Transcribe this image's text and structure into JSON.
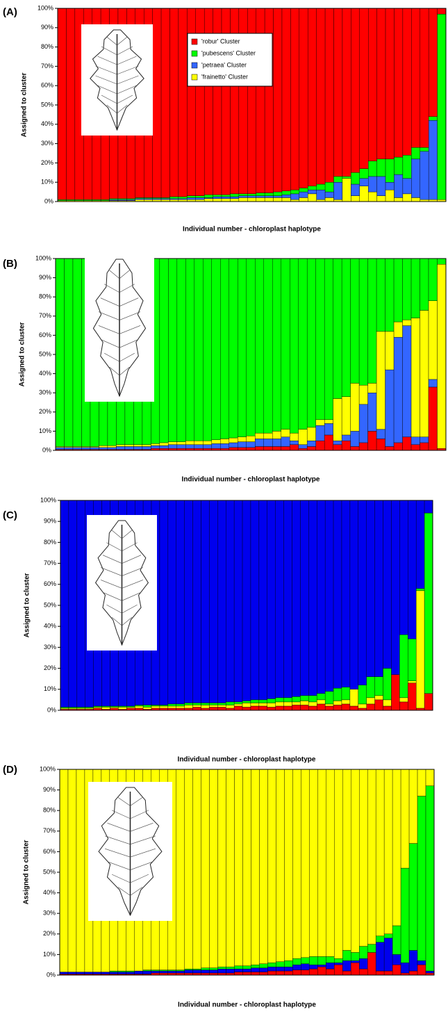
{
  "chart_data": [
    {
      "type": "bar",
      "stacked": true,
      "panel_label": "(A)",
      "y_label": "Assigned to cluster",
      "x_label": "Individual number - chloroplast haplotype",
      "legend": true,
      "categories": [
        null,
        null,
        null,
        null,
        null,
        null,
        null,
        null,
        null,
        null,
        null,
        null,
        null,
        null,
        null,
        null,
        null,
        null,
        null,
        null,
        null,
        null,
        null,
        null,
        null,
        null,
        null,
        null,
        null,
        null,
        null,
        null,
        null,
        null,
        null,
        null,
        null,
        null,
        null,
        null,
        null,
        null,
        null,
        null,
        null
      ],
      "ylim": [
        0,
        100
      ],
      "yticks": [
        {
          "value": 0,
          "label": "0%"
        },
        {
          "value": 10,
          "label": "10%"
        },
        {
          "value": 20,
          "label": "20%"
        },
        {
          "value": 30,
          "label": "30%"
        },
        {
          "value": 40,
          "label": "40%"
        },
        {
          "value": 50,
          "label": "50%"
        },
        {
          "value": 60,
          "label": "60%"
        },
        {
          "value": 70,
          "label": "70%"
        },
        {
          "value": 80,
          "label": "80%"
        },
        {
          "value": 90,
          "label": "90%"
        },
        {
          "value": 100,
          "label": "100%"
        }
      ],
      "series": [
        {
          "name": "'robur' Cluster",
          "color": "#ff0000",
          "values": [
            99,
            99,
            99,
            99,
            99,
            99,
            98.5,
            98.5,
            98.5,
            98,
            98,
            98,
            98,
            97.5,
            97.5,
            97,
            97,
            96.5,
            96.5,
            96.5,
            96,
            96,
            96,
            95.5,
            95.5,
            95,
            94.5,
            94,
            93,
            92,
            91,
            90,
            87,
            87,
            85,
            83,
            79,
            78,
            78,
            77,
            76,
            72,
            72,
            56,
            3
          ]
        },
        {
          "name": "'pubescens' Cluster",
          "color": "#00ff00",
          "values": [
            0.5,
            0.5,
            0.5,
            0.5,
            0.5,
            0.5,
            0.5,
            0.5,
            0.5,
            0.5,
            0.5,
            0.5,
            0.5,
            1,
            1,
            1,
            1,
            1.5,
            1,
            1,
            1.5,
            1,
            1,
            1.5,
            1.5,
            2,
            2,
            2,
            2,
            2,
            3,
            5,
            3,
            1,
            6,
            5,
            8,
            9,
            12,
            9,
            12,
            6,
            2,
            2,
            96
          ]
        },
        {
          "name": "'petraea' Cluster",
          "color": "#3366ff",
          "values": [
            0,
            0,
            0,
            0,
            0,
            0,
            0.5,
            0.5,
            0.5,
            0.5,
            0.5,
            0.5,
            0.5,
            0.5,
            0.5,
            1,
            1,
            0.5,
            1,
            1,
            1,
            1,
            1,
            1,
            1,
            1,
            1.5,
            3,
            3,
            2,
            5,
            3,
            9,
            0,
            6,
            4,
            8,
            10,
            4,
            12,
            8,
            20,
            25,
            41,
            0
          ]
        },
        {
          "name": "'frainetto' Cluster",
          "color": "#ffff00",
          "values": [
            0.5,
            0.5,
            0.5,
            0.5,
            0.5,
            0.5,
            0.5,
            0.5,
            0.5,
            1,
            1,
            1,
            1,
            1,
            1,
            1,
            1,
            1.5,
            1.5,
            1.5,
            1.5,
            2,
            2,
            2,
            2,
            2,
            2,
            1,
            2,
            4,
            1,
            2,
            1,
            12,
            3,
            8,
            5,
            3,
            6,
            2,
            4,
            2,
            1,
            1,
            1
          ]
        }
      ]
    },
    {
      "type": "bar",
      "stacked": true,
      "panel_label": "(B)",
      "y_label": "Assigned to cluster",
      "x_label": "Individual number - chloroplast haplotype",
      "categories": [
        null,
        null,
        null,
        null,
        null,
        null,
        null,
        null,
        null,
        null,
        null,
        null,
        null,
        null,
        null,
        null,
        null,
        null,
        null,
        null,
        null,
        null,
        null,
        null,
        null,
        null,
        null,
        null,
        null,
        null,
        null,
        null,
        null,
        null,
        null,
        null,
        null,
        null,
        null,
        null,
        null,
        null,
        null,
        null,
        null
      ],
      "ylim": [
        0,
        100
      ],
      "yticks": [
        {
          "value": 0,
          "label": "0%"
        },
        {
          "value": 10,
          "label": "10%"
        },
        {
          "value": 20,
          "label": "20%"
        },
        {
          "value": 30,
          "label": "30%"
        },
        {
          "value": 40,
          "label": "40%"
        },
        {
          "value": 50,
          "label": "50%"
        },
        {
          "value": 60,
          "label": "60%"
        },
        {
          "value": 70,
          "label": "70%"
        },
        {
          "value": 80,
          "label": "80%"
        },
        {
          "value": 90,
          "label": "90%"
        },
        {
          "value": 100,
          "label": "100%"
        }
      ],
      "series": [
        {
          "color": "#00ff00",
          "values": [
            98,
            98,
            98,
            98,
            98,
            97.5,
            97.5,
            97,
            97,
            97,
            97,
            96.5,
            96,
            95.5,
            95.5,
            95,
            95,
            95,
            94.5,
            94,
            93.5,
            93,
            92.5,
            91,
            91,
            90,
            89,
            91,
            89,
            88,
            84,
            84,
            73,
            72,
            65,
            66,
            65,
            38,
            38,
            33,
            32,
            31,
            27,
            22,
            3
          ]
        },
        {
          "color": "#ffff00",
          "values": [
            0.5,
            0.5,
            0.5,
            0.5,
            0.5,
            1,
            1,
            1,
            1,
            1,
            1,
            1,
            1.5,
            1.5,
            1.5,
            2,
            2,
            2,
            2,
            2.5,
            2.5,
            2.5,
            3,
            3,
            3,
            4,
            4,
            4,
            8,
            7,
            3,
            2,
            22,
            20,
            25,
            10,
            5,
            51,
            20,
            8,
            3,
            62,
            66,
            41,
            96
          ]
        },
        {
          "color": "#3366ff",
          "values": [
            1,
            1,
            1,
            1,
            1,
            1,
            1,
            1.5,
            1.5,
            1.5,
            1.5,
            1.5,
            1.5,
            2,
            2,
            2,
            2,
            2,
            2.5,
            2.5,
            2.5,
            3,
            3,
            4,
            4,
            4,
            5,
            2,
            2,
            3,
            8,
            6,
            2,
            3,
            8,
            20,
            20,
            5,
            40,
            55,
            58,
            4,
            3,
            4,
            0
          ]
        },
        {
          "color": "#ff0000",
          "values": [
            0.5,
            0.5,
            0.5,
            0.5,
            0.5,
            0.5,
            0.5,
            0.5,
            0.5,
            0.5,
            0.5,
            1,
            1,
            1,
            1,
            1,
            1,
            1,
            1,
            1,
            1.5,
            1.5,
            1.5,
            2,
            2,
            2,
            2,
            3,
            1,
            2,
            5,
            8,
            3,
            5,
            2,
            4,
            10,
            6,
            2,
            4,
            7,
            3,
            4,
            33,
            1
          ]
        }
      ]
    },
    {
      "type": "bar",
      "stacked": true,
      "panel_label": "(C)",
      "y_label": "Assigned to cluster",
      "x_label": "Individual number - chloroplast haplotype",
      "categories": [
        null,
        null,
        null,
        null,
        null,
        null,
        null,
        null,
        null,
        null,
        null,
        null,
        null,
        null,
        null,
        null,
        null,
        null,
        null,
        null,
        null,
        null,
        null,
        null,
        null,
        null,
        null,
        null,
        null,
        null,
        null,
        null,
        null,
        null,
        null,
        null,
        null,
        null,
        null,
        null,
        null,
        null,
        null,
        null,
        null
      ],
      "ylim": [
        0,
        100
      ],
      "yticks": [
        {
          "value": 0,
          "label": "0%"
        },
        {
          "value": 10,
          "label": "10%"
        },
        {
          "value": 20,
          "label": "20%"
        },
        {
          "value": 30,
          "label": "30%"
        },
        {
          "value": 40,
          "label": "40%"
        },
        {
          "value": 50,
          "label": "50%"
        },
        {
          "value": 60,
          "label": "60%"
        },
        {
          "value": 70,
          "label": "70%"
        },
        {
          "value": 80,
          "label": "80%"
        },
        {
          "value": 90,
          "label": "90%"
        },
        {
          "value": 100,
          "label": "100%"
        }
      ],
      "series": [
        {
          "color": "#0000ee",
          "values": [
            98.5,
            98.5,
            98.5,
            98.5,
            98,
            98,
            98,
            98,
            98,
            97.5,
            97.5,
            97.5,
            97.5,
            97,
            97,
            96.5,
            96.5,
            96.5,
            96.5,
            96.5,
            96,
            96,
            95.5,
            95,
            95,
            94.5,
            94,
            94,
            93.5,
            93,
            93,
            92,
            91,
            89.5,
            89,
            90,
            88,
            84,
            84,
            80,
            83,
            64,
            66,
            42,
            6
          ]
        },
        {
          "color": "#00ff00",
          "values": [
            0.5,
            0.5,
            0.5,
            0.5,
            0.5,
            0.5,
            0.5,
            0.5,
            0.5,
            0.5,
            1,
            0.5,
            0.5,
            1,
            1,
            1,
            1,
            1,
            1,
            1,
            1.5,
            1,
            1,
            1.5,
            1.5,
            2,
            2,
            2,
            2.5,
            2.5,
            3,
            3,
            6,
            6,
            6,
            0,
            9,
            10,
            9,
            15,
            0,
            30,
            20,
            1,
            86
          ]
        },
        {
          "color": "#ffff00",
          "values": [
            0.5,
            0.5,
            0.5,
            0.5,
            0.5,
            1,
            0.5,
            1,
            0.5,
            1,
            1,
            1,
            1,
            1,
            1,
            1.5,
            1,
            1.5,
            1,
            1,
            1.5,
            1,
            2,
            1.5,
            1.5,
            2,
            2,
            2,
            1.5,
            2,
            2,
            2,
            1,
            2,
            2,
            8,
            2,
            3,
            2,
            3,
            0,
            2,
            1,
            56,
            0
          ]
        },
        {
          "color": "#ff0000",
          "values": [
            0.5,
            0.5,
            0.5,
            0.5,
            1,
            0.5,
            1,
            0.5,
            1,
            1,
            0.5,
            1,
            1,
            1,
            1,
            1,
            1.5,
            1,
            1.5,
            1.5,
            1,
            2,
            1.5,
            2,
            2,
            1.5,
            2,
            2,
            2.5,
            2.5,
            2,
            3,
            2,
            2.5,
            3,
            2,
            1,
            3,
            5,
            2,
            17,
            4,
            13,
            1,
            8
          ]
        }
      ]
    },
    {
      "type": "bar",
      "stacked": true,
      "panel_label": "(D)",
      "y_label": "Assigned to cluster",
      "x_label": "Individual number - chloroplast haplotype",
      "categories": [
        null,
        null,
        null,
        null,
        null,
        null,
        null,
        null,
        null,
        null,
        null,
        null,
        null,
        null,
        null,
        null,
        null,
        null,
        null,
        null,
        null,
        null,
        null,
        null,
        null,
        null,
        null,
        null,
        null,
        null,
        null,
        null,
        null,
        null,
        null,
        null,
        null,
        null,
        null,
        null,
        null,
        null,
        null,
        null,
        null
      ],
      "ylim": [
        0,
        100
      ],
      "yticks": [
        {
          "value": 0,
          "label": "0%"
        },
        {
          "value": 10,
          "label": "10%"
        },
        {
          "value": 20,
          "label": "20%"
        },
        {
          "value": 30,
          "label": "30%"
        },
        {
          "value": 40,
          "label": "40%"
        },
        {
          "value": 50,
          "label": "50%"
        },
        {
          "value": 60,
          "label": "60%"
        },
        {
          "value": 70,
          "label": "70%"
        },
        {
          "value": 80,
          "label": "80%"
        },
        {
          "value": 90,
          "label": "90%"
        },
        {
          "value": 100,
          "label": "100%"
        }
      ],
      "series": [
        {
          "color": "#ffff00",
          "values": [
            98.5,
            98.5,
            98.5,
            98.5,
            98.5,
            98.5,
            98,
            98,
            98,
            98,
            97.5,
            97.5,
            97.5,
            97.5,
            97.5,
            97,
            97,
            96.5,
            96.5,
            96,
            96,
            95.5,
            95.5,
            95,
            94.5,
            94,
            93.5,
            93,
            92,
            91.5,
            91,
            91,
            91,
            92,
            88,
            89,
            86,
            85,
            81,
            80,
            76,
            48,
            36,
            13,
            8
          ]
        },
        {
          "color": "#00ff00",
          "values": [
            0,
            0,
            0,
            0,
            0,
            0,
            0.5,
            0.5,
            0.5,
            0,
            0.5,
            0.5,
            0.5,
            0.5,
            0.5,
            0.5,
            0.5,
            1,
            1,
            1,
            1,
            1.5,
            1.5,
            1.5,
            2,
            2,
            2.5,
            3,
            3,
            3,
            4,
            4,
            3,
            2,
            5,
            4,
            6,
            4,
            3,
            2,
            14,
            46,
            52,
            80,
            90
          ]
        },
        {
          "color": "#0000ee",
          "values": [
            1,
            1,
            1,
            1,
            1,
            1,
            1,
            1,
            1,
            1.5,
            1.5,
            1,
            1,
            1,
            1,
            1.5,
            1.5,
            1.5,
            1.5,
            2,
            2,
            1.5,
            1.5,
            2,
            2,
            2,
            2,
            2,
            2.5,
            3,
            2,
            1,
            3,
            1,
            5,
            1,
            5,
            0,
            14,
            16,
            5,
            5,
            10,
            2,
            1
          ]
        },
        {
          "color": "#ff0000",
          "values": [
            0.5,
            0.5,
            0.5,
            0.5,
            0.5,
            0.5,
            0.5,
            0.5,
            0.5,
            0.5,
            0.5,
            1,
            1,
            1,
            1,
            1,
            1,
            1,
            1,
            1,
            1,
            1.5,
            1.5,
            1.5,
            1.5,
            2,
            2,
            2,
            2.5,
            2.5,
            3,
            4,
            3,
            5,
            2,
            6,
            3,
            11,
            2,
            2,
            5,
            1,
            2,
            5,
            1
          ]
        }
      ]
    }
  ]
}
